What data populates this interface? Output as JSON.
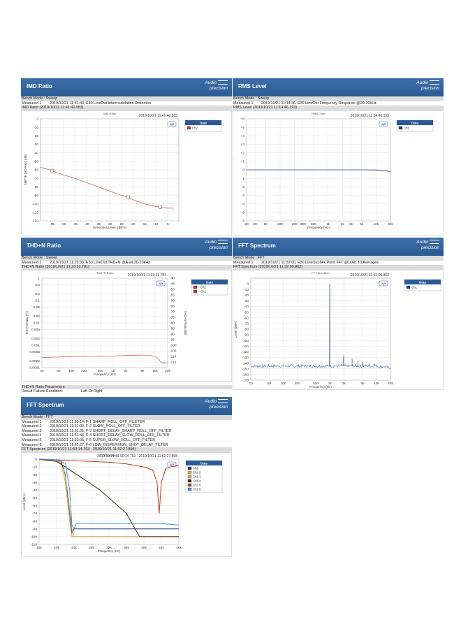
{
  "logo": {
    "line1": "Audio",
    "line2": "precision"
  },
  "panels": [
    {
      "title": "IMD Ratio",
      "bench_mode": "Bench Mode : Sweep",
      "measured": [
        {
          "label": "Measured 1",
          "text": "2019/10/21 11:41:40, E30 LineOut Intermodulation Distortion"
        }
      ],
      "section": "IMD Ratio (2019/10/21 11:41:40.583)",
      "chart_title": "IMD Ratio",
      "timestamp": "2019/10/21 11:41:40.583",
      "legend_header": "Data",
      "legend": [
        {
          "name": "Ch2",
          "color": "#c0392b"
        }
      ]
    },
    {
      "title": "RMS Level",
      "bench_mode": "Bench Mode : Sweep",
      "measured": [
        {
          "label": "Measured 1",
          "text": "2019/10/21 11:14:46, E30 LineOut Frequency Response @20-20kHz"
        }
      ],
      "section": "RMS Level (2019/10/21 11:14:46.193)",
      "chart_title": "RMS Level",
      "timestamp": "2019/10/21 11:14:46.193",
      "legend_header": "Data",
      "legend": [
        {
          "name": "Ch1",
          "color": "#1f3a80"
        }
      ]
    },
    {
      "title": "THD+N Ratio",
      "bench_mode": "Bench Mode : Sweep",
      "measured": [
        {
          "label": "Measured 1",
          "text": "2019/10/21 11:23:33, E30 LineOut THD+N @A-wt,20-20kHz"
        }
      ],
      "section": "THD+N Ratio (2019/10/21 11:23:33.781)",
      "chart_title": "THD+N Ratio",
      "timestamp": "2019/10/21 11:23:33.781",
      "legend_header": "Data",
      "legend": [
        {
          "name": "Ch2",
          "color": "#c0392b",
          "marker": "*"
        },
        {
          "name": "Ch2",
          "color": "#c0392b",
          "marker": "*"
        }
      ],
      "params_title": "THD+N Ratio Parameters",
      "params_label": "Result Failure Condition:",
      "params_value": "Left Or Right"
    },
    {
      "title": "FFT Spectrum",
      "bench_mode": "Bench Mode : FFT",
      "measured": [
        {
          "label": "Measured 1",
          "text": "2019/10/21 11:32:00, E30 LineOut 64k Point FFT @1kHz 10 Averages"
        }
      ],
      "section": "FFT Spectrum (2019/10/21 11:32:00.862)",
      "chart_title": "FFT Spectrum",
      "timestamp": "2019/10/21 11:32:00.862",
      "legend_header": "Data",
      "legend": [
        {
          "name": "Ch1",
          "color": "#1f3a80"
        }
      ]
    },
    {
      "title": "FFT Spectrum",
      "bench_mode": "Bench Mode : FFT",
      "measured": [
        {
          "label": "Measured 1",
          "text": "2019/10/21 11:50:14, F-1 SHARP_ROLL_OFF_FILETER"
        },
        {
          "label": "Measured 2",
          "text": "2019/10/21 11:51:03, F-2 SLOW_ROLL_OFF_FILTER"
        },
        {
          "label": "Measured 3",
          "text": "2019/10/21 11:51:25, F-3 SHORT_DELAY_SHARP_ROLL_OFF_FILTER"
        },
        {
          "label": "Measured 4",
          "text": "2019/10/21 11:51:46, F-4 SHORT_DELAY_SLOW_ROLL_OFF_FILTER"
        },
        {
          "label": "Measured 5",
          "text": "2019/10/21 11:52:06, F-5 SUPER_SLOW_ROLL_OFF_FILTER"
        },
        {
          "label": "Measured 6",
          "text": "2019/10/21 11:52:27, F-6 LOW_DISPERSION_SHOT_DELAY_FILTER"
        }
      ],
      "section": "FFT Spectrum (2019/10/21 11:50:14.763 - 2019/10/21 11:52:27.898)",
      "chart_title": "FFT Spectrum",
      "timestamp": "2019/10/21 11:50:14.763 - 2019/10/21 11:52:27.898",
      "legend_header": "Data",
      "legend": [
        {
          "name": "Ch1",
          "color": "#1f3a80"
        },
        {
          "name": "Ch1 2",
          "color": "#e6a23c"
        },
        {
          "name": "Ch1 3",
          "color": "#c8a36a"
        },
        {
          "name": "Ch1 4",
          "color": "#3a2a10"
        },
        {
          "name": "Ch1 5",
          "color": "#c0392b"
        },
        {
          "name": "Ch1 6",
          "color": "#3a8ee6"
        }
      ]
    }
  ],
  "chart_data": [
    {
      "type": "line",
      "title": "IMD Ratio",
      "xlabel": "Generator Level (dBFS)",
      "ylabel": "SMPTE IMD Ratio (dB)",
      "xlim": [
        -60,
        0
      ],
      "ylim": [
        -120,
        0
      ],
      "xticks": [
        -55,
        -50,
        -45,
        -40,
        -35,
        -30,
        -25,
        -20,
        -15,
        -10,
        -5
      ],
      "yticks": [
        0,
        -10,
        -20,
        -30,
        -40,
        -50,
        -60,
        -70,
        -80,
        -90,
        -100,
        -110,
        -120
      ],
      "series": [
        {
          "name": "Ch2",
          "x": [
            -60,
            -56,
            -55,
            -53,
            -50,
            -45,
            -40,
            -35,
            -30,
            -25,
            -22,
            -20,
            -15,
            -10,
            -8,
            -5,
            -2
          ],
          "y": [
            -57,
            -60,
            -61,
            -63,
            -66,
            -70,
            -75,
            -80,
            -85,
            -90,
            -92,
            -95,
            -100,
            -103,
            -104,
            -105,
            -105
          ]
        }
      ],
      "markers_x": [
        -55,
        -22,
        -8
      ]
    },
    {
      "type": "line",
      "title": "RMS Level",
      "xlabel": "Frequency (Hz)",
      "ylabel": "RMS Level (dBrA)",
      "xscale": "log",
      "xlim": [
        20,
        20000
      ],
      "ylim": [
        -6,
        6
      ],
      "xticks": [
        20,
        30,
        50,
        100,
        200,
        300,
        500,
        "1k",
        "2k",
        "3k",
        "5k",
        "10k",
        "20k"
      ],
      "yticks": [
        "+6",
        "+5",
        "+4",
        "+3",
        "+2",
        "+1",
        "0",
        "-1",
        "-2",
        "-3",
        "-4",
        "-5",
        "-6"
      ],
      "series": [
        {
          "name": "Ch1",
          "x": [
            20,
            100,
            1000,
            5000,
            10000,
            15000,
            20000
          ],
          "y": [
            0,
            0,
            0,
            0,
            -0.02,
            -0.1,
            -0.2
          ]
        }
      ]
    },
    {
      "type": "line",
      "title": "THD+N Ratio",
      "xlabel": "Frequency (Hz)",
      "ylabel": "THD+N Ratio (%)",
      "ylabel2": "THD+N Ratio (dB)",
      "xscale": "log",
      "xlim": [
        20,
        20000
      ],
      "yticks": [
        "1",
        "0.5",
        "0.2",
        "0.1",
        "0.05",
        "0.02",
        "0.01",
        "0.005",
        "0.002",
        "0.001",
        "0.0005",
        "0.0002",
        "0.0001"
      ],
      "yticks2": [
        "-40",
        "-45",
        "-50",
        "-55",
        "-60",
        "-65",
        "-70",
        "-75",
        "-80",
        "-85",
        "-90",
        "-95",
        "-100",
        "-105",
        "-110",
        "-115"
      ],
      "xticks": [
        20,
        50,
        100,
        200,
        500,
        "1k",
        "2k",
        "5k",
        "10k",
        "20k"
      ],
      "series": [
        {
          "name": "Ch2",
          "x": [
            20,
            50,
            100,
            200,
            500,
            1000,
            2000,
            5000,
            7000,
            10000,
            12000,
            14000,
            20000
          ],
          "y": [
            -111.0,
            -110.5,
            -110.2,
            -110.0,
            -109.8,
            -109.6,
            -109.2,
            -108.8,
            -109.0,
            -109.8,
            -112,
            -115.5,
            -115.8
          ]
        }
      ]
    },
    {
      "type": "line",
      "title": "FFT Spectrum",
      "xlabel": "Frequency (Hz)",
      "ylabel": "Level (dBrA)",
      "xscale": "log",
      "xlim": [
        20,
        20000
      ],
      "ylim": [
        -170,
        10
      ],
      "xticks": [
        20,
        50,
        100,
        200,
        500,
        "1k",
        "2k",
        "5k",
        "10k",
        "20k"
      ],
      "yticks": [
        0,
        -10,
        -20,
        -30,
        -40,
        -50,
        -60,
        -70,
        -80,
        -90,
        -100,
        -110,
        -120,
        -130,
        -140,
        -150,
        -160,
        -170
      ],
      "series": [
        {
          "name": "Ch1",
          "noise_floor": -145,
          "peaks": [
            [
              1000,
              0
            ],
            [
              2000,
              -125
            ],
            [
              3000,
              -132
            ],
            [
              4000,
              -135
            ],
            [
              5000,
              -138
            ],
            [
              7000,
              -140
            ],
            [
              9000,
              -141
            ]
          ]
        }
      ]
    },
    {
      "type": "line",
      "title": "FFT Spectrum",
      "xlabel": "Frequency (Hz)",
      "ylabel": "Level (dBrA)",
      "xlim": [
        16000,
        48000
      ],
      "ylim": [
        -110,
        0
      ],
      "xticks": [
        "16k",
        "20k",
        "24k",
        "28k",
        "32k",
        "36k",
        "40k",
        "44k",
        "48k"
      ],
      "yticks": [
        0,
        -10,
        -20,
        -30,
        -40,
        -50,
        -60,
        -70,
        -80,
        -90,
        -100,
        -110
      ],
      "series": [
        {
          "name": "Ch1",
          "x": [
            16000,
            20000,
            21000,
            22000,
            23000,
            23500,
            24000,
            26000,
            30000,
            36000,
            40000,
            44000,
            48000
          ],
          "y": [
            0,
            -1,
            -3,
            -20,
            -70,
            -95,
            -90,
            -90,
            -90,
            -90,
            -90,
            -90,
            -90
          ]
        },
        {
          "name": "Ch1 2",
          "x": [
            16000,
            20000,
            21000,
            22000,
            23000,
            23500,
            24000,
            26000,
            30000,
            36000,
            40000,
            44000,
            48000
          ],
          "y": [
            -1,
            -2,
            -5,
            -30,
            -80,
            -100,
            -100,
            -100,
            -100,
            -100,
            -100,
            -100,
            -100
          ]
        },
        {
          "name": "Ch1 3",
          "x": [
            16000,
            20000,
            21500,
            22500,
            23500,
            24000,
            26000,
            30000,
            36000,
            40000,
            44000,
            48000
          ],
          "y": [
            0,
            -2,
            -8,
            -40,
            -90,
            -100,
            -100,
            -100,
            -100,
            -100,
            -100,
            -100
          ]
        },
        {
          "name": "Ch1 4",
          "x": [
            16000,
            20000,
            22000,
            26000,
            30000,
            34000,
            36000,
            38000,
            39000,
            40000,
            44000,
            48000
          ],
          "y": [
            0,
            -3,
            -10,
            -25,
            -40,
            -60,
            -70,
            -90,
            -100,
            -100,
            -100,
            -100
          ]
        },
        {
          "name": "Ch1 5",
          "x": [
            16000,
            20000,
            24000,
            28000,
            32000,
            36000,
            40000,
            42000,
            43000,
            43500,
            44000,
            45000,
            46000,
            48000
          ],
          "y": [
            0,
            -1,
            -2,
            -3,
            -4,
            -6,
            -10,
            -14,
            -30,
            -70,
            -30,
            -12,
            -10,
            -8
          ]
        },
        {
          "name": "Ch1 6",
          "x": [
            16000,
            20000,
            22000,
            23000,
            23500,
            24000,
            24500,
            26000,
            30000,
            36000,
            40000,
            44000,
            48000
          ],
          "y": [
            0,
            -1,
            -5,
            -40,
            -85,
            -90,
            -83,
            -83,
            -83,
            -83,
            -83,
            -83,
            -85
          ]
        }
      ]
    }
  ]
}
